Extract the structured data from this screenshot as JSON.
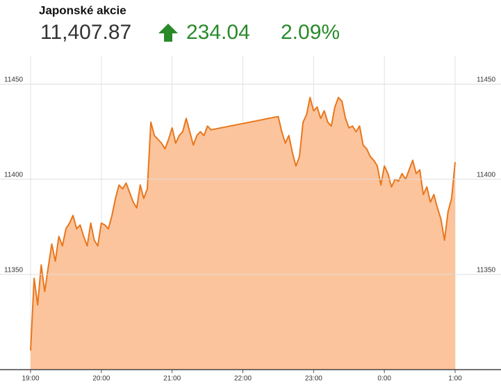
{
  "chart_data": {
    "type": "area",
    "title": "Japonské akcie",
    "last_value": "11,407.87",
    "change": "234.04",
    "change_pct": "2.09%",
    "color": "#e8761c",
    "fill_color": "#fcc49c",
    "header_color": "#2a8a2a",
    "grid": true,
    "ylim": [
      11300,
      11465
    ],
    "yticks": [
      11350,
      11400,
      11450
    ],
    "xticks": [
      "19:00",
      "20:00",
      "21:00",
      "22:00",
      "23:00",
      "0:00",
      "1:00"
    ],
    "x": [
      "19:00",
      "19:03",
      "19:06",
      "19:09",
      "19:12",
      "19:15",
      "19:18",
      "19:21",
      "19:24",
      "19:27",
      "19:30",
      "19:33",
      "19:36",
      "19:39",
      "19:42",
      "19:45",
      "19:48",
      "19:51",
      "19:54",
      "19:57",
      "20:00",
      "20:03",
      "20:06",
      "20:09",
      "20:12",
      "20:15",
      "20:18",
      "20:21",
      "20:24",
      "20:27",
      "20:30",
      "20:33",
      "20:36",
      "20:39",
      "20:42",
      "20:45",
      "20:48",
      "20:51",
      "20:54",
      "20:57",
      "21:00",
      "21:03",
      "21:06",
      "21:09",
      "21:12",
      "21:15",
      "21:18",
      "21:21",
      "21:24",
      "21:27",
      "21:30",
      "21:33",
      "22:30",
      "22:33",
      "22:36",
      "22:39",
      "22:42",
      "22:45",
      "22:48",
      "22:51",
      "22:54",
      "22:57",
      "23:00",
      "23:03",
      "23:06",
      "23:09",
      "23:12",
      "23:15",
      "23:18",
      "23:21",
      "23:24",
      "23:27",
      "23:30",
      "23:33",
      "23:36",
      "23:39",
      "23:42",
      "23:45",
      "23:48",
      "23:51",
      "23:54",
      "23:57",
      "0:00",
      "0:03",
      "0:06",
      "0:09",
      "0:12",
      "0:15",
      "0:18",
      "0:21",
      "0:24",
      "0:27",
      "0:30",
      "0:33",
      "0:36",
      "0:39",
      "0:42",
      "0:45",
      "0:48",
      "0:51",
      "0:54",
      "0:57",
      "1:00"
    ],
    "values": [
      11310,
      11348,
      11334,
      11355,
      11341,
      11354,
      11366,
      11357,
      11370,
      11365,
      11374,
      11377,
      11381,
      11374,
      11376,
      11370,
      11365,
      11377,
      11368,
      11365,
      11377,
      11376,
      11374,
      11381,
      11390,
      11397,
      11395,
      11398,
      11393,
      11388,
      11385,
      11397,
      11390,
      11395,
      11430,
      11423,
      11421,
      11419,
      11416,
      11421,
      11427,
      11419,
      11423,
      11425,
      11432,
      11425,
      11418,
      11423,
      11425,
      11423,
      11428,
      11426,
      11433,
      11425,
      11419,
      11423,
      11414,
      11407,
      11412,
      11430,
      11434,
      11443,
      11436,
      11438,
      11432,
      11436,
      11430,
      11428,
      11438,
      11443,
      11441,
      11432,
      11427,
      11428,
      11425,
      11428,
      11418,
      11416,
      11412,
      11410,
      11407,
      11397,
      11407,
      11403,
      11396,
      11400,
      11399,
      11403,
      11400,
      11405,
      11410,
      11403,
      11405,
      11392,
      11396,
      11388,
      11392,
      11385,
      11379,
      11368,
      11383,
      11390,
      11409
    ]
  }
}
